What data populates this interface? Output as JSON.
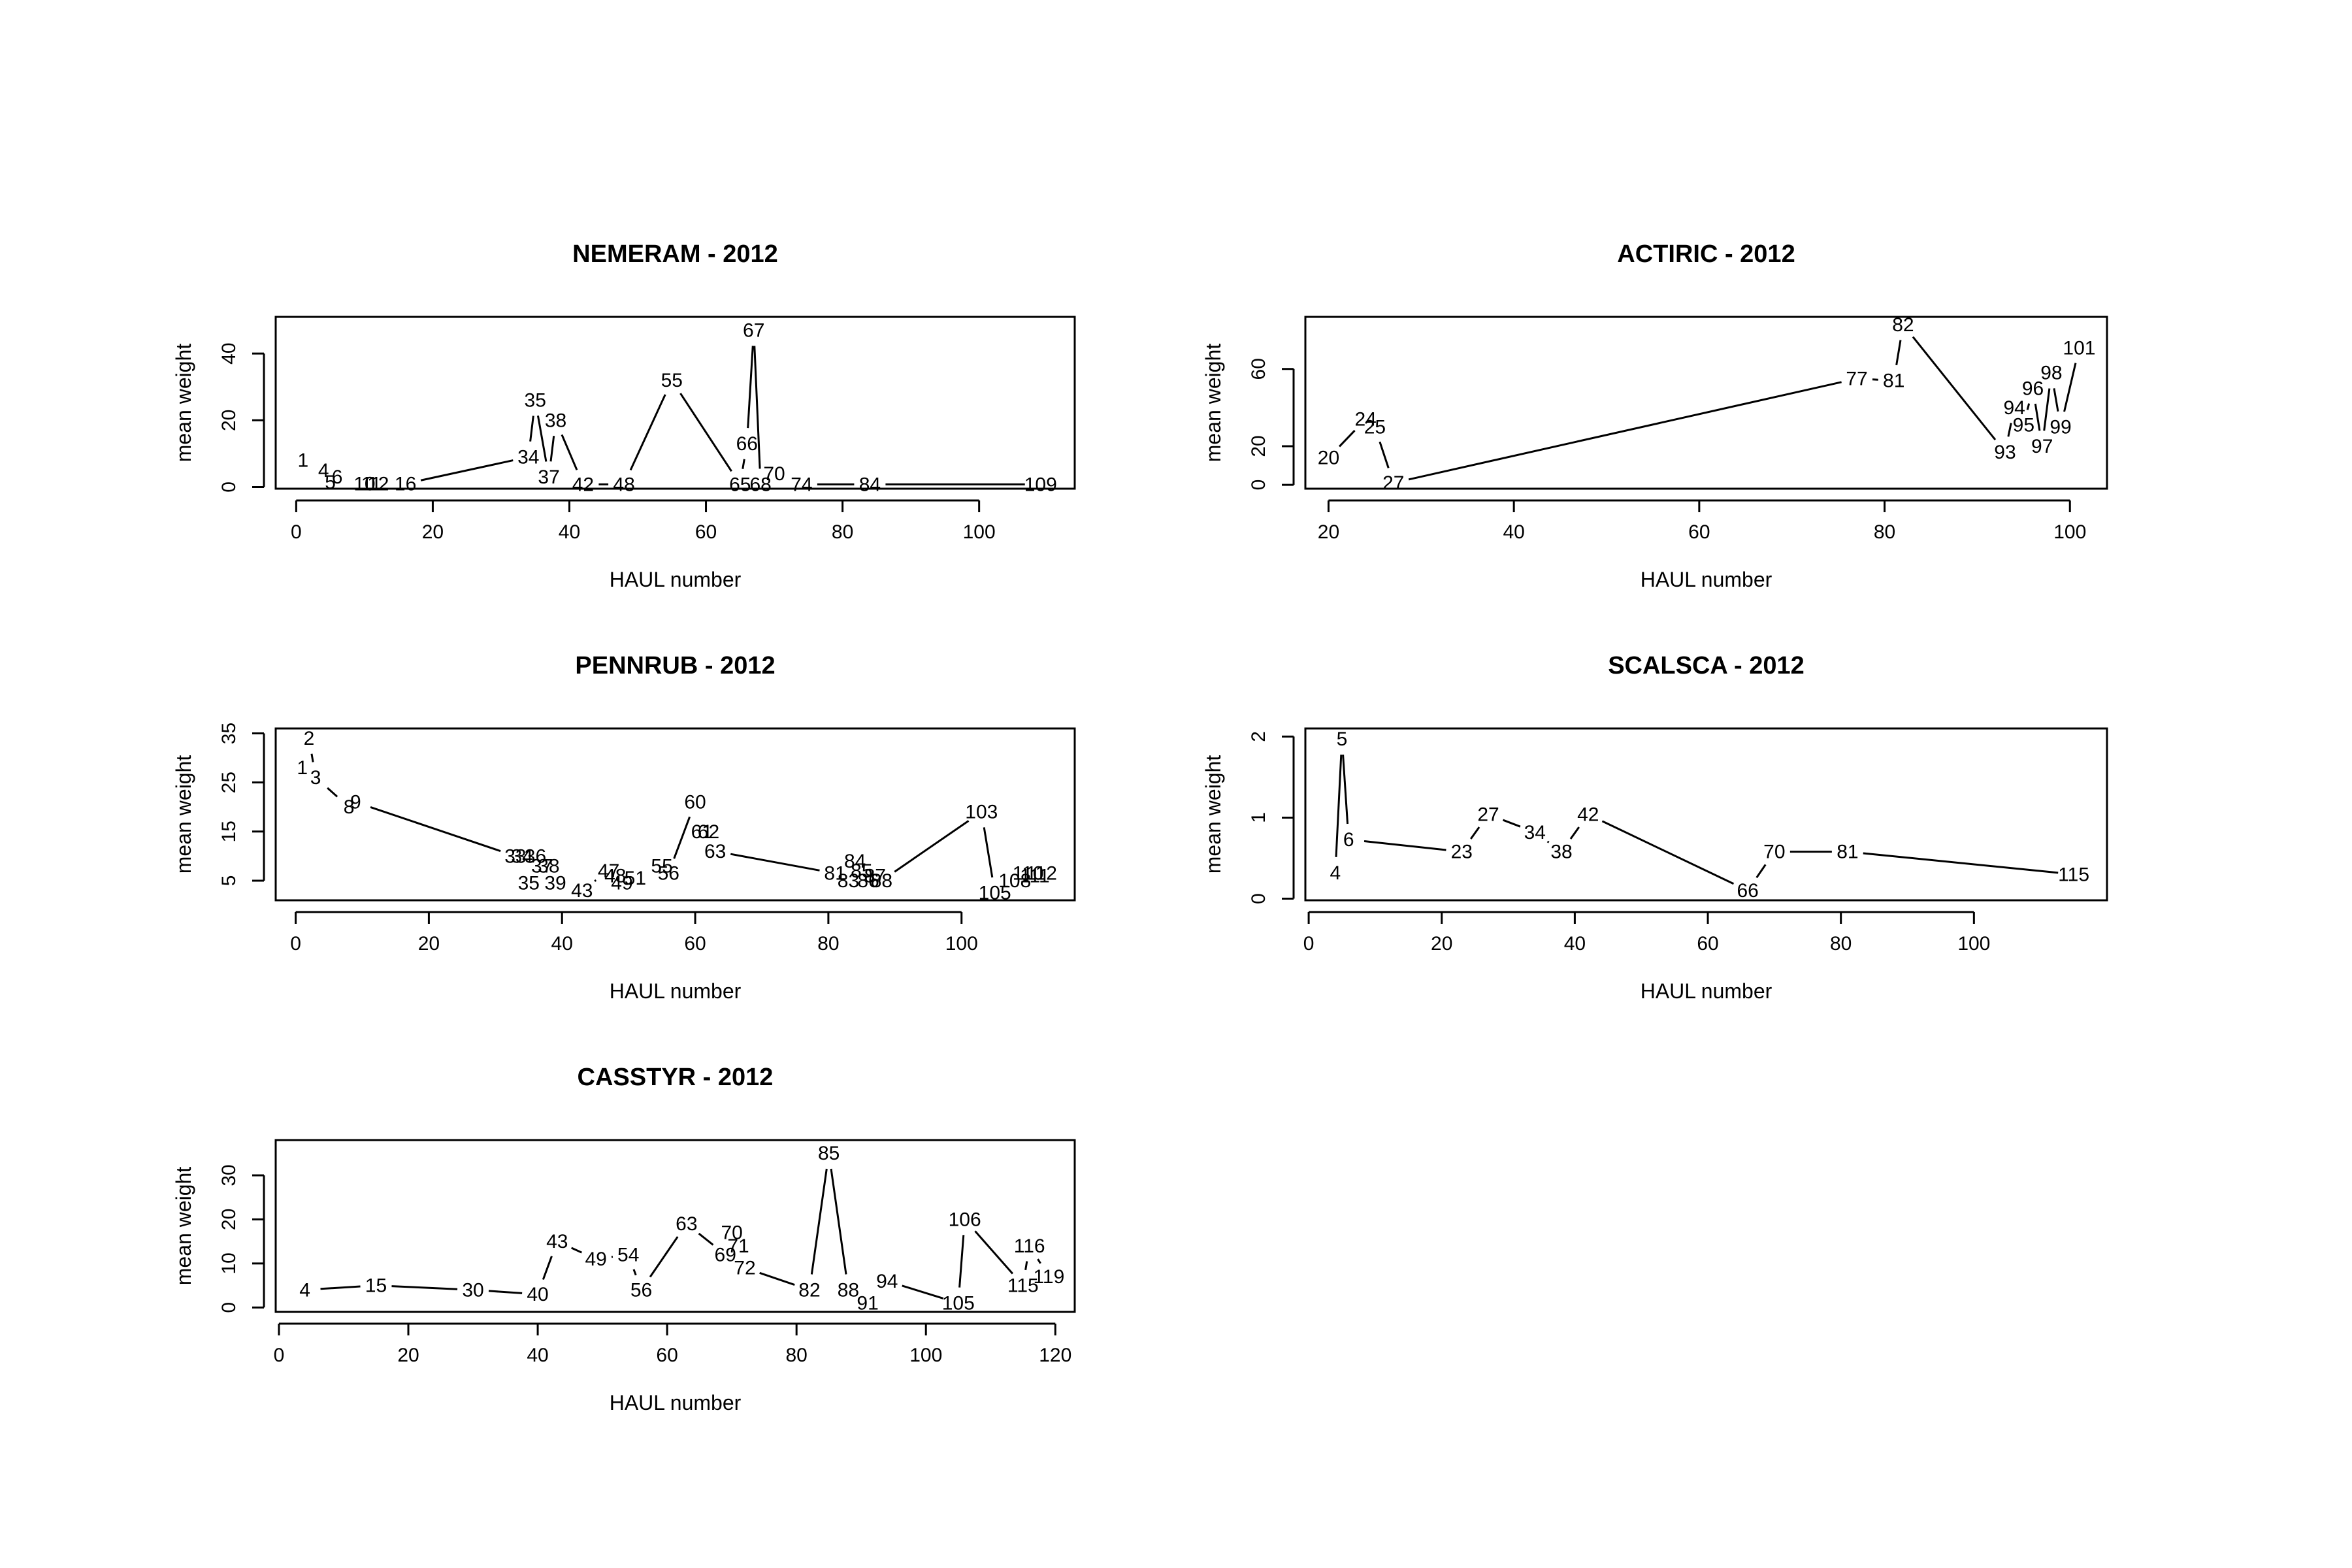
{
  "chart_data": [
    {
      "type": "line",
      "title": "NEMERAM - 2012",
      "xlabel": "HAUL number",
      "ylabel": "mean weight",
      "xlim": [
        -3,
        114
      ],
      "ylim": [
        -0.5,
        51
      ],
      "xticks": [
        0,
        20,
        40,
        60,
        80,
        100
      ],
      "yticks": [
        0,
        20,
        40
      ],
      "series": [
        {
          "x": [
            1,
            4,
            5,
            6,
            10,
            11,
            12,
            16,
            34,
            35,
            37,
            38,
            42,
            48,
            55,
            65,
            66,
            67,
            68,
            70,
            74,
            84,
            109
          ],
          "y": [
            8,
            5,
            1.5,
            3,
            1,
            1,
            1,
            1,
            9,
            26,
            3,
            20,
            0.8,
            0.8,
            32,
            0.8,
            13,
            47,
            0.8,
            4,
            0.8,
            0.8,
            0.8
          ],
          "labels": [
            "1",
            "4",
            "5",
            "6",
            "10",
            "11",
            "12",
            "16",
            "34",
            "35",
            "37",
            "38",
            "42",
            "48",
            "55",
            "65",
            "66",
            "67",
            "68",
            "70",
            "74",
            "84",
            "109"
          ]
        }
      ]
    },
    {
      "type": "line",
      "title": "ACTIRIC - 2012",
      "xlabel": "HAUL number",
      "ylabel": "mean weight",
      "xlim": [
        17.5,
        104
      ],
      "ylim": [
        -2,
        87
      ],
      "xticks": [
        20,
        40,
        60,
        80,
        100
      ],
      "yticks": [
        0,
        20,
        60
      ],
      "series": [
        {
          "x": [
            20,
            24,
            25,
            27,
            77,
            81,
            82,
            93,
            94,
            95,
            96,
            97,
            98,
            99,
            101
          ],
          "y": [
            14,
            34,
            30,
            1,
            55,
            54,
            83,
            17,
            40,
            31,
            50,
            20,
            58,
            30,
            71
          ],
          "labels": [
            "20",
            "24",
            "25",
            "27",
            "77",
            "81",
            "82",
            "93",
            "94",
            "95",
            "96",
            "97",
            "98",
            "99",
            "101"
          ]
        }
      ]
    },
    {
      "type": "line",
      "title": "PENNRUB - 2012",
      "xlabel": "HAUL number",
      "ylabel": "mean weight",
      "xlim": [
        -3,
        117
      ],
      "ylim": [
        1,
        36
      ],
      "xticks": [
        0,
        20,
        40,
        60,
        80,
        100
      ],
      "yticks": [
        5,
        15,
        25,
        35
      ],
      "series": [
        {
          "x": [
            1,
            2,
            3,
            8,
            9,
            33,
            34,
            35,
            36,
            37,
            38,
            39,
            43,
            47,
            48,
            49,
            51,
            55,
            56,
            60,
            61,
            62,
            63,
            81,
            83,
            84,
            85,
            86,
            87,
            88,
            103,
            105,
            108,
            110,
            111,
            112
          ],
          "y": [
            28,
            34,
            26,
            20,
            21,
            10,
            10,
            4.5,
            10,
            8,
            8,
            4.5,
            3,
            7,
            6,
            4.5,
            5.5,
            8,
            6.5,
            21,
            15,
            15,
            11,
            6.5,
            5,
            9,
            7,
            5,
            6,
            5,
            19,
            2.5,
            5,
            6.5,
            6,
            6.5
          ],
          "labels": [
            "1",
            "2",
            "3",
            "8",
            "9",
            "33",
            "34",
            "35",
            "36",
            "37",
            "38",
            "39",
            "43",
            "47",
            "48",
            "49",
            "51",
            "55",
            "56",
            "60",
            "61",
            "62",
            "63",
            "81",
            "83",
            "84",
            "85",
            "86",
            "87",
            "88",
            "103",
            "105",
            "108",
            "110",
            "111",
            "112"
          ]
        }
      ]
    },
    {
      "type": "line",
      "title": "SCALSCA - 2012",
      "xlabel": "HAUL number",
      "ylabel": "mean weight",
      "xlim": [
        -0.5,
        120
      ],
      "ylim": [
        -0.02,
        2.1
      ],
      "xticks": [
        0,
        20,
        40,
        60,
        80,
        100
      ],
      "yticks": [
        0.0,
        1.0,
        2.0
      ],
      "series": [
        {
          "x": [
            4,
            5,
            6,
            23,
            27,
            34,
            38,
            42,
            66,
            70,
            81,
            115
          ],
          "y": [
            0.32,
            1.97,
            0.73,
            0.58,
            1.04,
            0.82,
            0.58,
            1.04,
            0.1,
            0.58,
            0.58,
            0.3
          ],
          "labels": [
            "4",
            "5",
            "6",
            "23",
            "27",
            "34",
            "38",
            "42",
            "66",
            "70",
            "81",
            "115"
          ]
        }
      ]
    },
    {
      "type": "line",
      "title": "CASSTYR - 2012",
      "xlabel": "HAUL number",
      "ylabel": "mean weight",
      "xlim": [
        -0.5,
        123
      ],
      "ylim": [
        -1,
        38
      ],
      "xticks": [
        0,
        20,
        40,
        60,
        80,
        100,
        120
      ],
      "yticks": [
        0,
        10,
        20,
        30
      ],
      "series": [
        {
          "x": [
            4,
            15,
            30,
            40,
            43,
            49,
            54,
            56,
            63,
            69,
            70,
            71,
            72,
            82,
            85,
            88,
            91,
            94,
            105,
            106,
            115,
            116,
            119
          ],
          "y": [
            4,
            5,
            4,
            3,
            15,
            11,
            12,
            4,
            19,
            12,
            17,
            14,
            9,
            4,
            35,
            4,
            1,
            6,
            1,
            20,
            5,
            14,
            7
          ],
          "labels": [
            "4",
            "15",
            "30",
            "40",
            "43",
            "49",
            "54",
            "56",
            "63",
            "69",
            "70",
            "71",
            "72",
            "82",
            "85",
            "88",
            "91",
            "94",
            "105",
            "106",
            "115",
            "116",
            "119"
          ]
        }
      ]
    }
  ]
}
